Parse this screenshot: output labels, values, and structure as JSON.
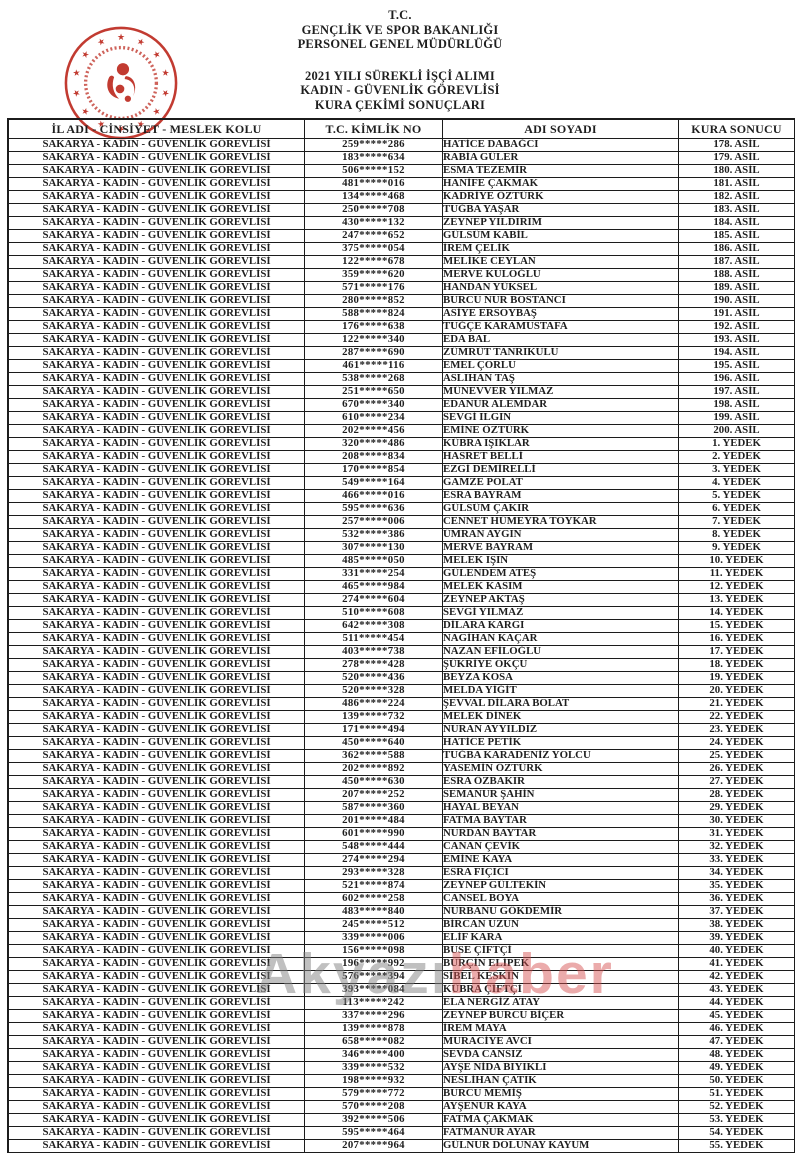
{
  "header": {
    "line1": "T.C.",
    "line2": "GENÇLİK VE SPOR BAKANLIĞI",
    "line3": "PERSONEL GENEL MÜDÜRLÜĞÜ",
    "line4": "2021 YILI SÜREKLİ İŞÇİ ALIMI",
    "line5": "KADIN - GÜVENLİK GÖREVLİSİ",
    "line6": "KURA ÇEKİMİ SONUÇLARI",
    "logo_name": "genclik-ve-spor-bakanligi-seal",
    "seal_color": "#c23b31"
  },
  "watermark": {
    "part1": "Akyazı",
    "part2": "haber"
  },
  "table": {
    "columns": [
      "İL ADI - CİNSİYET - MESLEK KOLU",
      "T.C. KİMLİK NO",
      "ADI SOYADI",
      "KURA SONUCU"
    ],
    "province_cell": "SAKARYA - KADIN - GÜVENLİK GÖREVLİSİ",
    "rows": [
      [
        "259*****286",
        "HATİCE DABAĞCI",
        "178. ASİL"
      ],
      [
        "183*****634",
        "RABİA GÜLER",
        "179. ASİL"
      ],
      [
        "506*****152",
        "ESMA TEZEMİR",
        "180. ASİL"
      ],
      [
        "481*****016",
        "HANİFE ÇAKMAK",
        "181. ASİL"
      ],
      [
        "134*****468",
        "KADRİYE ÖZTÜRK",
        "182. ASİL"
      ],
      [
        "250*****708",
        "TUĞBA YAŞAR",
        "183. ASİL"
      ],
      [
        "430*****132",
        "ZEYNEP YILDIRIM",
        "184. ASİL"
      ],
      [
        "247*****652",
        "GÜLSÜM KABİL",
        "185. ASİL"
      ],
      [
        "375*****054",
        "İREM ÇELİK",
        "186. ASİL"
      ],
      [
        "122*****678",
        "MELİKE CEYLAN",
        "187. ASİL"
      ],
      [
        "359*****620",
        "MERVE KULOĞLU",
        "188. ASİL"
      ],
      [
        "571*****176",
        "HANDAN YÜKSEL",
        "189. ASİL"
      ],
      [
        "280*****852",
        "BURCU NUR BOSTANCI",
        "190. ASİL"
      ],
      [
        "588*****824",
        "ASİYE ERSOYBAŞ",
        "191. ASİL"
      ],
      [
        "176*****638",
        "TUĞÇE KARAMUSTAFA",
        "192. ASİL"
      ],
      [
        "122*****340",
        "EDA BAL",
        "193. ASİL"
      ],
      [
        "287*****690",
        "ZÜMRÜT TANRIKULU",
        "194. ASİL"
      ],
      [
        "461*****116",
        "EMEL ÇORLU",
        "195. ASİL"
      ],
      [
        "538*****268",
        "ASLIHAN TAŞ",
        "196. ASİL"
      ],
      [
        "251*****650",
        "MÜNEVVER YILMAZ",
        "197. ASİL"
      ],
      [
        "670*****340",
        "EDANUR ALEMDAR",
        "198. ASİL"
      ],
      [
        "610*****234",
        "SEVGİ ILGIN",
        "199. ASİL"
      ],
      [
        "202*****456",
        "EMİNE ÖZTÜRK",
        "200. ASİL"
      ],
      [
        "320*****486",
        "KÜBRA IŞIKLAR",
        "1. YEDEK"
      ],
      [
        "208*****834",
        "HASRET BELLİ",
        "2. YEDEK"
      ],
      [
        "170*****854",
        "EZGİ DEMİRELLİ",
        "3. YEDEK"
      ],
      [
        "549*****164",
        "GAMZE POLAT",
        "4. YEDEK"
      ],
      [
        "466*****016",
        "ESRA BAYRAM",
        "5. YEDEK"
      ],
      [
        "595*****636",
        "GÜLSÜM ÇAKIR",
        "6. YEDEK"
      ],
      [
        "257*****006",
        "CENNET HÜMEYRA TOYKAR",
        "7. YEDEK"
      ],
      [
        "532*****386",
        "ÜMRAN AYGIN",
        "8. YEDEK"
      ],
      [
        "307*****130",
        "MERVE BAYRAM",
        "9. YEDEK"
      ],
      [
        "485*****050",
        "MELEK IŞIN",
        "10. YEDEK"
      ],
      [
        "331*****254",
        "GÜLENDEM ATEŞ",
        "11. YEDEK"
      ],
      [
        "465*****984",
        "MELEK KASIM",
        "12. YEDEK"
      ],
      [
        "274*****604",
        "ZEYNEP AKTAŞ",
        "13. YEDEK"
      ],
      [
        "510*****608",
        "SEVGİ YILMAZ",
        "14. YEDEK"
      ],
      [
        "642*****308",
        "DİLARA KARGI",
        "15. YEDEK"
      ],
      [
        "511*****454",
        "NAGİHAN KAÇAR",
        "16. YEDEK"
      ],
      [
        "403*****738",
        "NAZAN EFİLOĞLU",
        "17. YEDEK"
      ],
      [
        "278*****428",
        "ŞÜKRİYE OKÇU",
        "18. YEDEK"
      ],
      [
        "520*****436",
        "BEYZA KOSA",
        "19. YEDEK"
      ],
      [
        "520*****328",
        "MELDA YİĞİT",
        "20. YEDEK"
      ],
      [
        "486*****224",
        "ŞEVVAL DİLARA BOLAT",
        "21. YEDEK"
      ],
      [
        "139*****732",
        "MELEK DİNEK",
        "22. YEDEK"
      ],
      [
        "171*****494",
        "NURAN AYYILDIZ",
        "23. YEDEK"
      ],
      [
        "450*****640",
        "HATİCE PETİK",
        "24. YEDEK"
      ],
      [
        "362*****588",
        "TUĞBA KARADENİZ YOLCU",
        "25. YEDEK"
      ],
      [
        "202*****892",
        "YASEMİN ÖZTÜRK",
        "26. YEDEK"
      ],
      [
        "450*****630",
        "ESRA ÖZBAKIR",
        "27. YEDEK"
      ],
      [
        "207*****252",
        "SEMANUR ŞAHİN",
        "28. YEDEK"
      ],
      [
        "587*****360",
        "HAYAL BEYAN",
        "29. YEDEK"
      ],
      [
        "201*****484",
        "FATMA BAYTAR",
        "30. YEDEK"
      ],
      [
        "601*****990",
        "NURDAN BAYTAR",
        "31. YEDEK"
      ],
      [
        "548*****444",
        "CANAN ÇEVİK",
        "32. YEDEK"
      ],
      [
        "274*****294",
        "EMİNE KAYA",
        "33. YEDEK"
      ],
      [
        "293*****328",
        "ESRA FIÇICI",
        "34. YEDEK"
      ],
      [
        "521*****874",
        "ZEYNEP GÜLTEKİN",
        "35. YEDEK"
      ],
      [
        "602*****258",
        "CANSEL BOYA",
        "36. YEDEK"
      ],
      [
        "483*****840",
        "NURBANU GÖKDEMİR",
        "37. YEDEK"
      ],
      [
        "245*****512",
        "BİRCAN UZUN",
        "38. YEDEK"
      ],
      [
        "339*****006",
        "ELİF KARA",
        "39. YEDEK"
      ],
      [
        "156*****098",
        "BUSE ÇİFTÇİ",
        "40. YEDEK"
      ],
      [
        "196*****992",
        "BURÇİN ELİPEK",
        "41. YEDEK"
      ],
      [
        "576*****394",
        "SİBEL KESKİN",
        "42. YEDEK"
      ],
      [
        "393*****084",
        "KÜBRA ÇİFTÇİ",
        "43. YEDEK"
      ],
      [
        "113*****242",
        "ELA NERGİZ ATAY",
        "44. YEDEK"
      ],
      [
        "337*****296",
        "ZEYNEP BURCU BİÇER",
        "45. YEDEK"
      ],
      [
        "139*****878",
        "İREM MAYA",
        "46. YEDEK"
      ],
      [
        "658*****082",
        "MURACİYE AVCI",
        "47. YEDEK"
      ],
      [
        "346*****400",
        "SEVDA CANSIZ",
        "48. YEDEK"
      ],
      [
        "339*****532",
        "AYŞE NİDA BIYIKLI",
        "49. YEDEK"
      ],
      [
        "198*****932",
        "NESLİHAN ÇATIK",
        "50. YEDEK"
      ],
      [
        "579*****772",
        "BURCU MEMİŞ",
        "51. YEDEK"
      ],
      [
        "570*****208",
        "AYŞENUR KAYA",
        "52. YEDEK"
      ],
      [
        "392*****506",
        "FATMA ÇAKMAK",
        "53. YEDEK"
      ],
      [
        "595*****464",
        "FATMANUR AYAR",
        "54. YEDEK"
      ],
      [
        "207*****964",
        "GÜLNUR DOLUNAY KAYUM",
        "55. YEDEK"
      ]
    ]
  }
}
